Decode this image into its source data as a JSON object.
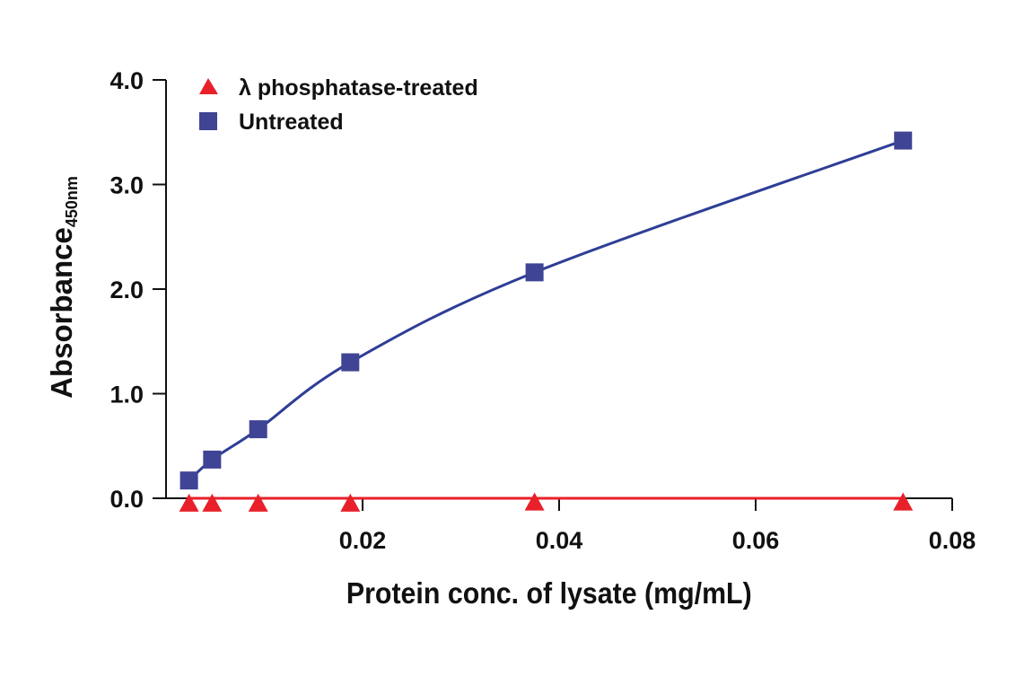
{
  "chart_data": {
    "type": "line",
    "title": "",
    "xlabel": "Protein conc. of lysate (mg/mL)",
    "ylabel": "Absorbance",
    "ylabel_subscript": "450nm",
    "xlim": [
      0,
      0.08
    ],
    "ylim": [
      0,
      4.0
    ],
    "xticks": [
      0.02,
      0.04,
      0.06,
      0.08
    ],
    "xtick_labels": [
      "0.02",
      "0.04",
      "0.06",
      "0.08"
    ],
    "yticks": [
      0,
      1,
      2,
      3,
      4
    ],
    "ytick_labels": [
      "0.0",
      "1.0",
      "2.0",
      "3.0",
      "4.0"
    ],
    "grid": false,
    "legend_position": "top-left",
    "series": [
      {
        "name": "λ phosphatase-treated",
        "marker": "triangle",
        "color": "#e8202a",
        "x": [
          0.00234,
          0.00469,
          0.00938,
          0.01875,
          0.0375,
          0.075
        ],
        "y": [
          -0.05,
          -0.05,
          -0.05,
          -0.05,
          -0.04,
          -0.04
        ],
        "fit_y": 0.0
      },
      {
        "name": "Untreated",
        "marker": "square",
        "color": "#3f4494",
        "line_color": "#2e3e96",
        "x": [
          0.00234,
          0.00469,
          0.00938,
          0.01875,
          0.0375,
          0.075
        ],
        "y": [
          0.17,
          0.37,
          0.66,
          1.3,
          2.16,
          3.42
        ]
      }
    ]
  }
}
